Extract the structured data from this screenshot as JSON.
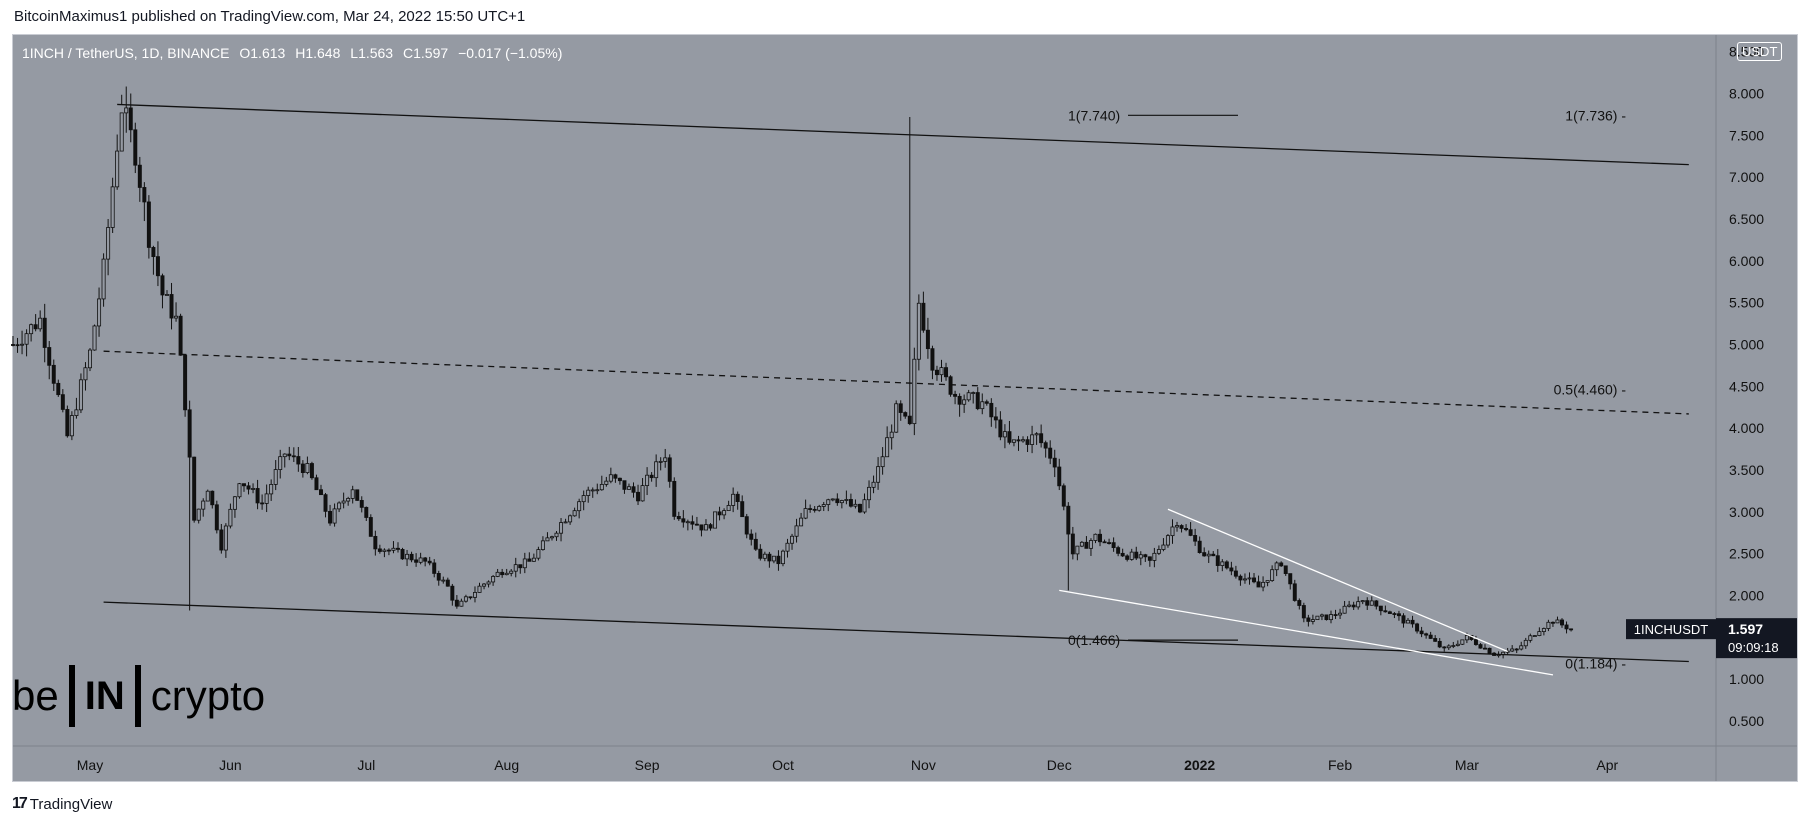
{
  "header": {
    "published": "BitcoinMaximus1 published on TradingView.com, Mar 24, 2022 15:50 UTC+1"
  },
  "legend": {
    "symbol": "1INCH / TetherUS, 1D, BINANCE",
    "o_label": "O",
    "o": "1.613",
    "h_label": "H",
    "h": "1.648",
    "l_label": "L",
    "l": "1.563",
    "c_label": "C",
    "c": "1.597",
    "change": "−0.017 (−1.05%)"
  },
  "currency_badge": "USDT",
  "price_tag": {
    "symbol": "1INCHUSDT",
    "price": "1.597",
    "countdown": "09:09:18"
  },
  "watermark": {
    "left": "be",
    "box": "IN",
    "right": "crypto"
  },
  "footer": {
    "brand": "TradingView"
  },
  "colors": {
    "plot_bg": "#959aa3",
    "axis_bg": "#959aa3",
    "candle": "#111111",
    "trendline": "#111111",
    "wedge": "#ffffff",
    "text": "#111111",
    "price_tag_bg": "#131722"
  },
  "chart_data": {
    "type": "candlestick",
    "title": "1INCH / TetherUS, 1D, BINANCE",
    "ylabel": "USDT",
    "ylim": [
      0.2,
      8.7
    ],
    "y_ticks": [
      "0.500",
      "1.000",
      "1.500",
      "2.000",
      "2.500",
      "3.000",
      "3.500",
      "4.000",
      "4.500",
      "5.000",
      "5.500",
      "6.000",
      "6.500",
      "7.000",
      "7.500",
      "8.000",
      "8.500"
    ],
    "x_ticks": [
      "May",
      "Jun",
      "Jul",
      "Aug",
      "Sep",
      "Oct",
      "Nov",
      "Dec",
      "2022",
      "Feb",
      "Mar",
      "Apr"
    ],
    "x_tick_dates": [
      "2021-05-01",
      "2021-06-01",
      "2021-07-01",
      "2021-08-01",
      "2021-09-01",
      "2021-10-01",
      "2021-11-01",
      "2021-12-01",
      "2022-01-01",
      "2022-02-01",
      "2022-03-01",
      "2022-04-01"
    ],
    "xlim": [
      "2021-04-14",
      "2022-04-25"
    ],
    "series": [
      {
        "kind": "daily-candles-approx",
        "points": [
          [
            "2021-04-14",
            5.0
          ],
          [
            "2021-04-20",
            5.3
          ],
          [
            "2021-04-26",
            3.9
          ],
          [
            "2021-05-01",
            4.9
          ],
          [
            "2021-05-04",
            5.9
          ],
          [
            "2021-05-07",
            7.4
          ],
          [
            "2021-05-08",
            7.85
          ],
          [
            "2021-05-11",
            7.3
          ],
          [
            "2021-05-14",
            6.3
          ],
          [
            "2021-05-17",
            5.6
          ],
          [
            "2021-05-20",
            5.3
          ],
          [
            "2021-05-22",
            4.3
          ],
          [
            "2021-05-24",
            2.9
          ],
          [
            "2021-05-27",
            3.3
          ],
          [
            "2021-05-30",
            2.6
          ],
          [
            "2021-06-03",
            3.4
          ],
          [
            "2021-06-08",
            3.1
          ],
          [
            "2021-06-13",
            3.7
          ],
          [
            "2021-06-18",
            3.5
          ],
          [
            "2021-06-23",
            2.9
          ],
          [
            "2021-06-28",
            3.3
          ],
          [
            "2021-07-03",
            2.6
          ],
          [
            "2021-07-08",
            2.5
          ],
          [
            "2021-07-14",
            2.4
          ],
          [
            "2021-07-19",
            2.1
          ],
          [
            "2021-07-21",
            1.85
          ],
          [
            "2021-07-26",
            2.1
          ],
          [
            "2021-07-31",
            2.3
          ],
          [
            "2021-08-06",
            2.4
          ],
          [
            "2021-08-12",
            2.8
          ],
          [
            "2021-08-18",
            3.2
          ],
          [
            "2021-08-24",
            3.4
          ],
          [
            "2021-08-30",
            3.2
          ],
          [
            "2021-09-05",
            3.7
          ],
          [
            "2021-09-07",
            3.0
          ],
          [
            "2021-09-14",
            2.8
          ],
          [
            "2021-09-20",
            3.2
          ],
          [
            "2021-09-25",
            2.5
          ],
          [
            "2021-09-30",
            2.4
          ],
          [
            "2021-10-06",
            3.0
          ],
          [
            "2021-10-12",
            3.2
          ],
          [
            "2021-10-18",
            3.0
          ],
          [
            "2021-10-22",
            3.5
          ],
          [
            "2021-10-26",
            4.2
          ],
          [
            "2021-10-29",
            4.0
          ],
          [
            "2021-10-31",
            5.5
          ],
          [
            "2021-11-03",
            4.8
          ],
          [
            "2021-11-08",
            4.4
          ],
          [
            "2021-11-14",
            4.3
          ],
          [
            "2021-11-20",
            3.8
          ],
          [
            "2021-11-26",
            3.9
          ],
          [
            "2021-11-30",
            3.6
          ],
          [
            "2021-12-04",
            2.5
          ],
          [
            "2021-12-09",
            2.7
          ],
          [
            "2021-12-15",
            2.5
          ],
          [
            "2021-12-21",
            2.4
          ],
          [
            "2021-12-27",
            2.9
          ],
          [
            "2022-01-02",
            2.5
          ],
          [
            "2022-01-08",
            2.3
          ],
          [
            "2022-01-14",
            2.1
          ],
          [
            "2022-01-19",
            2.4
          ],
          [
            "2022-01-24",
            1.7
          ],
          [
            "2022-01-30",
            1.75
          ],
          [
            "2022-02-06",
            1.95
          ],
          [
            "2022-02-12",
            1.8
          ],
          [
            "2022-02-18",
            1.6
          ],
          [
            "2022-02-24",
            1.35
          ],
          [
            "2022-03-01",
            1.5
          ],
          [
            "2022-03-07",
            1.3
          ],
          [
            "2022-03-12",
            1.35
          ],
          [
            "2022-03-17",
            1.6
          ],
          [
            "2022-03-20",
            1.7
          ],
          [
            "2022-03-24",
            1.597
          ]
        ]
      }
    ],
    "annotations": {
      "upper_channel": [
        [
          "2021-05-07",
          7.87
        ],
        [
          "2022-04-19",
          7.15
        ]
      ],
      "lower_channel": [
        [
          "2021-05-04",
          1.92
        ],
        [
          "2022-04-19",
          1.21
        ]
      ],
      "mid_channel_dashed": [
        [
          "2021-05-04",
          4.92
        ],
        [
          "2022-04-19",
          4.17
        ]
      ],
      "wedge_upper": [
        [
          "2021-12-25",
          3.03
        ],
        [
          "2022-03-10",
          1.33
        ]
      ],
      "wedge_lower": [
        [
          "2021-12-01",
          2.06
        ],
        [
          "2022-03-20",
          1.05
        ]
      ],
      "fib_left_top": {
        "label": "1(7.740)",
        "value": 7.74
      },
      "fib_left_bottom": {
        "label": "0(1.466)",
        "value": 1.466
      },
      "fib_right_top": {
        "label": "1(7.736)",
        "value": 7.736
      },
      "fib_right_mid": {
        "label": "0.5(4.460)",
        "value": 4.46
      },
      "fib_right_bottom": {
        "label": "0(1.184)",
        "value": 1.184
      }
    },
    "legend": "none",
    "grid": false
  }
}
